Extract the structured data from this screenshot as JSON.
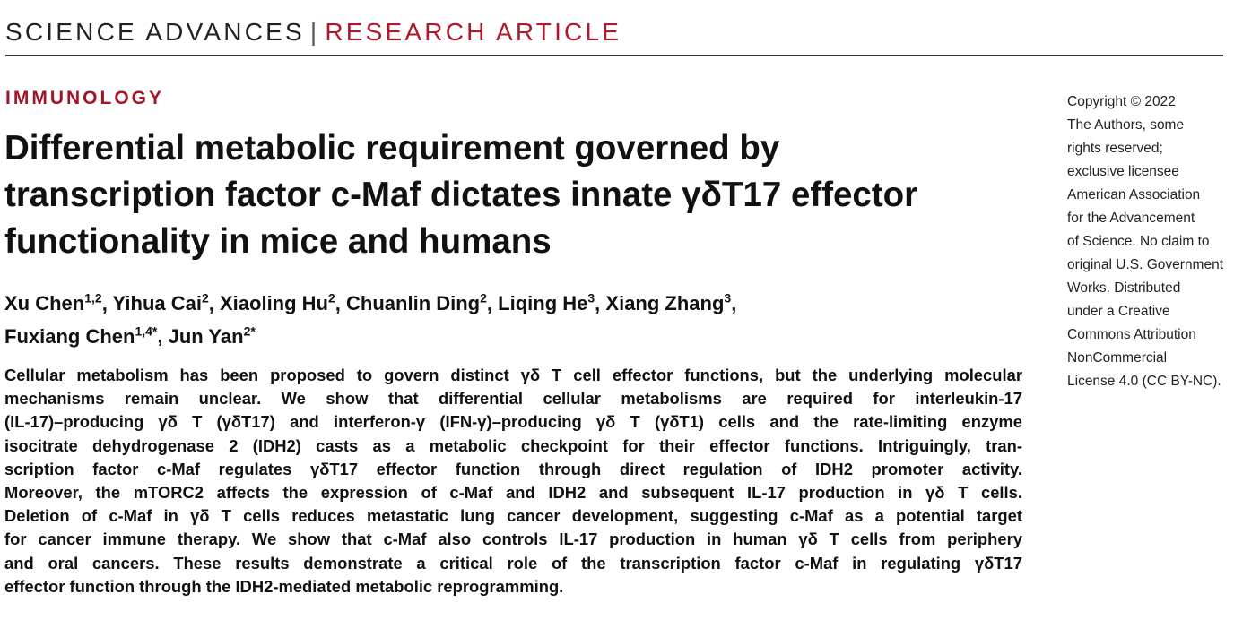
{
  "header": {
    "journal": "SCIENCE ADVANCES",
    "separator": "|",
    "article_type": "RESEARCH ARTICLE"
  },
  "section": "IMMUNOLOGY",
  "title_lines": [
    "Differential metabolic requirement governed by",
    "transcription factor c-Maf dictates innate γδT17 effector",
    "functionality in mice and humans"
  ],
  "authors": [
    {
      "name": "Xu Chen",
      "aff": "1,2",
      "sep": ", "
    },
    {
      "name": "Yihua Cai",
      "aff": "2",
      "sep": ", "
    },
    {
      "name": "Xiaoling Hu",
      "aff": "2",
      "sep": ", "
    },
    {
      "name": "Chuanlin Ding",
      "aff": "2",
      "sep": ", "
    },
    {
      "name": "Liqing He",
      "aff": "3",
      "sep": ", "
    },
    {
      "name": "Xiang Zhang",
      "aff": "3",
      "sep": ","
    },
    {
      "name": "Fuxiang Chen",
      "aff": "1,4*",
      "sep": ", "
    },
    {
      "name": "Jun Yan",
      "aff": "2*",
      "sep": ""
    }
  ],
  "abstract_lines": [
    "Cellular metabolism has been proposed to govern distinct γδ T cell effector functions, but the underlying molecular",
    "mechanisms remain unclear. We show that differential cellular metabolisms are required for interleukin-17",
    "(IL-17)–producing γδ T (γδT17) and interferon-γ (IFN-γ)–producing γδ T (γδT1) cells and the rate-limiting enzyme",
    "isocitrate dehydrogenase 2 (IDH2) casts as a metabolic checkpoint for their effector functions. Intriguingly, tran-",
    "scription factor c-Maf regulates γδT17 effector function through direct regulation of IDH2 promoter activity.",
    "Moreover, the mTORC2 affects the expression of c-Maf and IDH2 and subsequent IL-17 production in γδ T cells.",
    "Deletion of c-Maf in γδ T cells reduces metastatic lung cancer development, suggesting c-Maf as a potential target",
    "for cancer immune therapy. We show that c-Maf also controls IL-17 production in human γδ T cells from periphery",
    "and oral cancers. These results demonstrate a critical role of the transcription factor c-Maf in regulating γδT17",
    "effector function through the IDH2-mediated metabolic reprogramming."
  ],
  "copyright_lines": [
    "Copyright © 2022",
    "The Authors, some",
    "rights reserved;",
    "exclusive licensee",
    "American Association",
    "for the Advancement",
    "of Science. No claim to",
    "original U.S. Government",
    "Works. Distributed",
    "under a Creative",
    "Commons Attribution",
    "NonCommercial",
    "License 4.0 (CC BY-NC)."
  ],
  "colors": {
    "accent_red": "#b0182b",
    "text": "#111111"
  }
}
